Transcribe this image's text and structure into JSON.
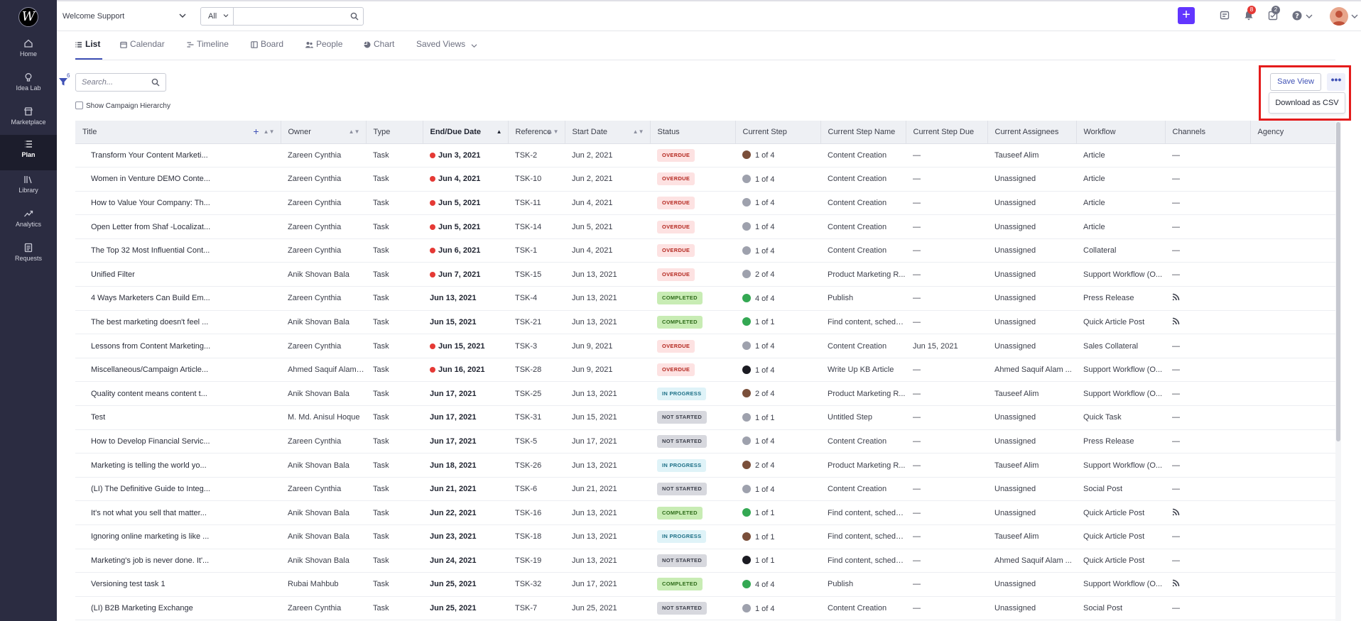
{
  "sidebar": {
    "logo": "W",
    "items": [
      {
        "label": "Home",
        "icon": "home-icon"
      },
      {
        "label": "Idea Lab",
        "icon": "lightbulb-icon"
      },
      {
        "label": "Marketplace",
        "icon": "store-icon"
      },
      {
        "label": "Plan",
        "icon": "list-icon"
      },
      {
        "label": "Library",
        "icon": "library-icon"
      },
      {
        "label": "Analytics",
        "icon": "trend-icon"
      },
      {
        "label": "Requests",
        "icon": "document-icon"
      }
    ]
  },
  "header": {
    "workspace": "Welcome Support",
    "search_scope": "All",
    "search_value": "",
    "notifications_count": "8",
    "tasks_count": "2",
    "colors": {
      "accent": "#6236ff",
      "badge_red": "#e53935",
      "badge_grey": "#6d7080"
    }
  },
  "tabs": [
    {
      "label": "List",
      "icon": "list-icon"
    },
    {
      "label": "Calendar",
      "icon": "calendar-icon"
    },
    {
      "label": "Timeline",
      "icon": "timeline-icon"
    },
    {
      "label": "Board",
      "icon": "board-icon"
    },
    {
      "label": "People",
      "icon": "people-icon"
    },
    {
      "label": "Chart",
      "icon": "pie-chart-icon"
    },
    {
      "label": "Saved Views",
      "icon": "chevron-down-icon"
    }
  ],
  "toolbar": {
    "filter_count": "6",
    "search_placeholder": "Search...",
    "hierarchy_label": "Show Campaign Hierarchy",
    "save_view_label": "Save View",
    "more_label": "•••",
    "download_label": "Download as CSV"
  },
  "table": {
    "columns": [
      "Title",
      "Owner",
      "Type",
      "End/Due Date",
      "Reference",
      "Start Date",
      "Status",
      "Current Step",
      "Current Step Name",
      "Current Step Due",
      "Current Assignees",
      "Workflow",
      "Channels",
      "Agency"
    ],
    "rows": [
      {
        "title": "Transform Your Content Marketi...",
        "owner": "Zareen Cynthia",
        "type": "Task",
        "due": "Jun 3, 2021",
        "overdue_dot": true,
        "ref": "TSK-2",
        "start": "Jun 2, 2021",
        "status": "OVERDUE",
        "status_class": "overdue",
        "step_icon": "photo",
        "step": "1 of 4",
        "step_name": "Content Creation",
        "step_due": "—",
        "assignees": "Tauseef Alim",
        "workflow": "Article",
        "channels": "—",
        "channel_rss": false,
        "agency": ""
      },
      {
        "title": "Women in Venture DEMO Conte...",
        "owner": "Zareen Cynthia",
        "type": "Task",
        "due": "Jun 4, 2021",
        "overdue_dot": true,
        "ref": "TSK-10",
        "start": "Jun 2, 2021",
        "status": "OVERDUE",
        "status_class": "overdue",
        "step_icon": "user",
        "step": "1 of 4",
        "step_name": "Content Creation",
        "step_due": "—",
        "assignees": "Unassigned",
        "workflow": "Article",
        "channels": "—",
        "channel_rss": false,
        "agency": ""
      },
      {
        "title": "How to Value Your Company: Th...",
        "owner": "Zareen Cynthia",
        "type": "Task",
        "due": "Jun 5, 2021",
        "overdue_dot": true,
        "ref": "TSK-11",
        "start": "Jun 4, 2021",
        "status": "OVERDUE",
        "status_class": "overdue",
        "step_icon": "user",
        "step": "1 of 4",
        "step_name": "Content Creation",
        "step_due": "—",
        "assignees": "Unassigned",
        "workflow": "Article",
        "channels": "—",
        "channel_rss": false,
        "agency": ""
      },
      {
        "title": "Open Letter from Shaf -Localizat...",
        "owner": "Zareen Cynthia",
        "type": "Task",
        "due": "Jun 5, 2021",
        "overdue_dot": true,
        "ref": "TSK-14",
        "start": "Jun 5, 2021",
        "status": "OVERDUE",
        "status_class": "overdue",
        "step_icon": "user",
        "step": "1 of 4",
        "step_name": "Content Creation",
        "step_due": "—",
        "assignees": "Unassigned",
        "workflow": "Article",
        "channels": "—",
        "channel_rss": false,
        "agency": ""
      },
      {
        "title": "The Top 32 Most Influential Cont...",
        "owner": "Zareen Cynthia",
        "type": "Task",
        "due": "Jun 6, 2021",
        "overdue_dot": true,
        "ref": "TSK-1",
        "start": "Jun 4, 2021",
        "status": "OVERDUE",
        "status_class": "overdue",
        "step_icon": "user",
        "step": "1 of 4",
        "step_name": "Content Creation",
        "step_due": "—",
        "assignees": "Unassigned",
        "workflow": "Collateral",
        "channels": "—",
        "channel_rss": false,
        "agency": ""
      },
      {
        "title": "Unified Filter",
        "owner": "Anik Shovan Bala",
        "type": "Task",
        "due": "Jun 7, 2021",
        "overdue_dot": true,
        "ref": "TSK-15",
        "start": "Jun 13, 2021",
        "status": "OVERDUE",
        "status_class": "overdue",
        "step_icon": "user",
        "step": "2 of 4",
        "step_name": "Product Marketing R...",
        "step_due": "—",
        "assignees": "Unassigned",
        "workflow": "Support Workflow (O...",
        "channels": "—",
        "channel_rss": false,
        "agency": ""
      },
      {
        "title": "4 Ways Marketers Can Build Em...",
        "owner": "Zareen Cynthia",
        "type": "Task",
        "due": "Jun 13, 2021",
        "overdue_dot": false,
        "ref": "TSK-4",
        "start": "Jun 13, 2021",
        "status": "COMPLETED",
        "status_class": "completed",
        "step_icon": "done",
        "step": "4 of 4",
        "step_name": "Publish",
        "step_due": "—",
        "assignees": "Unassigned",
        "workflow": "Press Release",
        "channels": "",
        "channel_rss": true,
        "agency": ""
      },
      {
        "title": "The best marketing doesn't feel ...",
        "owner": "Anik Shovan Bala",
        "type": "Task",
        "due": "Jun 15, 2021",
        "overdue_dot": false,
        "ref": "TSK-21",
        "start": "Jun 13, 2021",
        "status": "COMPLETED",
        "status_class": "completed",
        "step_icon": "done",
        "step": "1 of 1",
        "step_name": "Find content, schedu...",
        "step_due": "—",
        "assignees": "Unassigned",
        "workflow": "Quick Article Post",
        "channels": "",
        "channel_rss": true,
        "agency": ""
      },
      {
        "title": "Lessons from Content Marketing...",
        "owner": "Zareen Cynthia",
        "type": "Task",
        "due": "Jun 15, 2021",
        "overdue_dot": true,
        "ref": "TSK-3",
        "start": "Jun 9, 2021",
        "status": "OVERDUE",
        "status_class": "overdue",
        "step_icon": "user",
        "step": "1 of 4",
        "step_name": "Content Creation",
        "step_due": "Jun 15, 2021",
        "assignees": "Unassigned",
        "workflow": "Sales Collateral",
        "channels": "—",
        "channel_rss": false,
        "agency": ""
      },
      {
        "title": "Miscellaneous/Campaign Article...",
        "owner": "Ahmed Saquif Alam Ar",
        "type": "Task",
        "due": "Jun 16, 2021",
        "overdue_dot": true,
        "ref": "TSK-28",
        "start": "Jun 9, 2021",
        "status": "OVERDUE",
        "status_class": "overdue",
        "step_icon": "dark",
        "step": "1 of 4",
        "step_name": "Write Up KB Article",
        "step_due": "—",
        "assignees": "Ahmed Saquif Alam ...",
        "workflow": "Support Workflow (O...",
        "channels": "—",
        "channel_rss": false,
        "agency": ""
      },
      {
        "title": "Quality content means content t...",
        "owner": "Anik Shovan Bala",
        "type": "Task",
        "due": "Jun 17, 2021",
        "overdue_dot": false,
        "ref": "TSK-25",
        "start": "Jun 13, 2021",
        "status": "IN PROGRESS",
        "status_class": "inprogress",
        "step_icon": "photo",
        "step": "2 of 4",
        "step_name": "Product Marketing R...",
        "step_due": "—",
        "assignees": "Tauseef Alim",
        "workflow": "Support Workflow (O...",
        "channels": "—",
        "channel_rss": false,
        "agency": ""
      },
      {
        "title": "Test",
        "owner": "M. Md. Anisul Hoque",
        "type": "Task",
        "due": "Jun 17, 2021",
        "overdue_dot": false,
        "ref": "TSK-31",
        "start": "Jun 15, 2021",
        "status": "NOT STARTED",
        "status_class": "notstarted",
        "step_icon": "user",
        "step": "1 of 1",
        "step_name": "Untitled Step",
        "step_due": "—",
        "assignees": "Unassigned",
        "workflow": "Quick Task",
        "channels": "—",
        "channel_rss": false,
        "agency": ""
      },
      {
        "title": "How to Develop Financial Servic...",
        "owner": "Zareen Cynthia",
        "type": "Task",
        "due": "Jun 17, 2021",
        "overdue_dot": false,
        "ref": "TSK-5",
        "start": "Jun 17, 2021",
        "status": "NOT STARTED",
        "status_class": "notstarted",
        "step_icon": "user",
        "step": "1 of 4",
        "step_name": "Content Creation",
        "step_due": "—",
        "assignees": "Unassigned",
        "workflow": "Press Release",
        "channels": "—",
        "channel_rss": false,
        "agency": ""
      },
      {
        "title": "Marketing is telling the world yo...",
        "owner": "Anik Shovan Bala",
        "type": "Task",
        "due": "Jun 18, 2021",
        "overdue_dot": false,
        "ref": "TSK-26",
        "start": "Jun 13, 2021",
        "status": "IN PROGRESS",
        "status_class": "inprogress",
        "step_icon": "photo",
        "step": "2 of 4",
        "step_name": "Product Marketing R...",
        "step_due": "—",
        "assignees": "Tauseef Alim",
        "workflow": "Support Workflow (O...",
        "channels": "—",
        "channel_rss": false,
        "agency": ""
      },
      {
        "title": "(LI) The Definitive Guide to Integ...",
        "owner": "Zareen Cynthia",
        "type": "Task",
        "due": "Jun 21, 2021",
        "overdue_dot": false,
        "ref": "TSK-6",
        "start": "Jun 21, 2021",
        "status": "NOT STARTED",
        "status_class": "notstarted",
        "step_icon": "user",
        "step": "1 of 4",
        "step_name": "Content Creation",
        "step_due": "—",
        "assignees": "Unassigned",
        "workflow": "Social Post",
        "channels": "—",
        "channel_rss": false,
        "agency": ""
      },
      {
        "title": "It's not what you sell that matter...",
        "owner": "Anik Shovan Bala",
        "type": "Task",
        "due": "Jun 22, 2021",
        "overdue_dot": false,
        "ref": "TSK-16",
        "start": "Jun 13, 2021",
        "status": "COMPLETED",
        "status_class": "completed",
        "step_icon": "done",
        "step": "1 of 1",
        "step_name": "Find content, schedu...",
        "step_due": "—",
        "assignees": "Unassigned",
        "workflow": "Quick Article Post",
        "channels": "",
        "channel_rss": true,
        "agency": ""
      },
      {
        "title": "Ignoring online marketing is like ...",
        "owner": "Anik Shovan Bala",
        "type": "Task",
        "due": "Jun 23, 2021",
        "overdue_dot": false,
        "ref": "TSK-18",
        "start": "Jun 13, 2021",
        "status": "IN PROGRESS",
        "status_class": "inprogress",
        "step_icon": "photo",
        "step": "1 of 1",
        "step_name": "Find content, schedu...",
        "step_due": "—",
        "assignees": "Tauseef Alim",
        "workflow": "Quick Article Post",
        "channels": "—",
        "channel_rss": false,
        "agency": ""
      },
      {
        "title": "Marketing's job is never done. It'...",
        "owner": "Anik Shovan Bala",
        "type": "Task",
        "due": "Jun 24, 2021",
        "overdue_dot": false,
        "ref": "TSK-19",
        "start": "Jun 13, 2021",
        "status": "NOT STARTED",
        "status_class": "notstarted",
        "step_icon": "dark",
        "step": "1 of 1",
        "step_name": "Find content, schedu...",
        "step_due": "—",
        "assignees": "Ahmed Saquif Alam ...",
        "workflow": "Quick Article Post",
        "channels": "—",
        "channel_rss": false,
        "agency": ""
      },
      {
        "title": "Versioning test task 1",
        "owner": "Rubai Mahbub",
        "type": "Task",
        "due": "Jun 25, 2021",
        "overdue_dot": false,
        "ref": "TSK-32",
        "start": "Jun 17, 2021",
        "status": "COMPLETED",
        "status_class": "completed",
        "step_icon": "done",
        "step": "4 of 4",
        "step_name": "Publish",
        "step_due": "—",
        "assignees": "Unassigned",
        "workflow": "Support Workflow (O...",
        "channels": "",
        "channel_rss": true,
        "agency": ""
      },
      {
        "title": "(LI) B2B Marketing Exchange",
        "owner": "Zareen Cynthia",
        "type": "Task",
        "due": "Jun 25, 2021",
        "overdue_dot": false,
        "ref": "TSK-7",
        "start": "Jun 25, 2021",
        "status": "NOT STARTED",
        "status_class": "notstarted",
        "step_icon": "user",
        "step": "1 of 4",
        "step_name": "Content Creation",
        "step_due": "—",
        "assignees": "Unassigned",
        "workflow": "Social Post",
        "channels": "—",
        "channel_rss": false,
        "agency": ""
      }
    ]
  }
}
